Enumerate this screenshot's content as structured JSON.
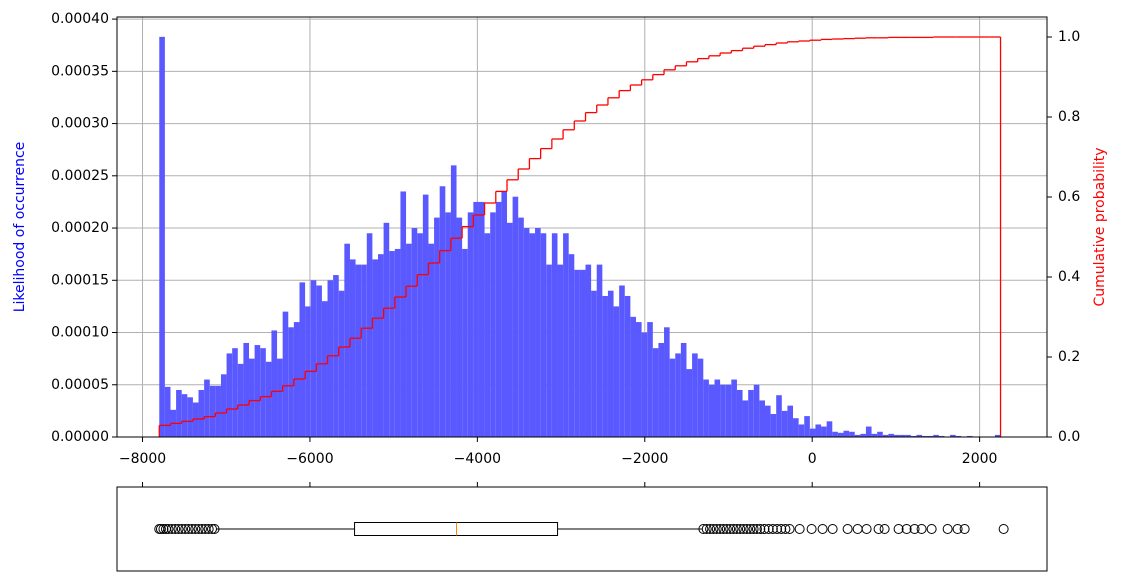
{
  "chart_data": [
    {
      "type": "histogram",
      "ylabel": "Likelihood of occurrence",
      "y2label": "Cumulative probability",
      "ylabel_color": "blue",
      "y2label_color": "red",
      "color": "#5959ff",
      "bins": [
        -7800,
        -7733,
        -7666,
        -7599,
        -7532,
        -7465,
        -7398,
        -7331,
        -7264,
        -7197,
        -7130,
        -7063,
        -6996,
        -6929,
        -6862,
        -6795,
        -6728,
        -6661,
        -6594,
        -6527,
        -6460,
        -6393,
        -6326,
        -6259,
        -6192,
        -6125,
        -6058,
        -5991,
        -5924,
        -5857,
        -5790,
        -5723,
        -5656,
        -5589,
        -5522,
        -5455,
        -5388,
        -5321,
        -5254,
        -5187,
        -5120,
        -5053,
        -4986,
        -4919,
        -4852,
        -4785,
        -4718,
        -4651,
        -4584,
        -4517,
        -4450,
        -4383,
        -4316,
        -4249,
        -4182,
        -4115,
        -4048,
        -3981,
        -3914,
        -3847,
        -3780,
        -3713,
        -3646,
        -3579,
        -3512,
        -3445,
        -3378,
        -3311,
        -3244,
        -3177,
        -3110,
        -3043,
        -2976,
        -2909,
        -2842,
        -2775,
        -2708,
        -2641,
        -2574,
        -2507,
        -2440,
        -2373,
        -2306,
        -2239,
        -2172,
        -2105,
        -2038,
        -1971,
        -1904,
        -1837,
        -1770,
        -1703,
        -1636,
        -1569,
        -1502,
        -1435,
        -1368,
        -1301,
        -1234,
        -1167,
        -1100,
        -1033,
        -966,
        -899,
        -832,
        -765,
        -698,
        -631,
        -564,
        -497,
        -430,
        -363,
        -296,
        -229,
        -162,
        -95,
        -28,
        39,
        106,
        173,
        240,
        307,
        374,
        441,
        508,
        575,
        642,
        709,
        776,
        843,
        910,
        977,
        1044,
        1111,
        1178,
        1245,
        1312,
        1379,
        1446,
        1513,
        1580,
        1647,
        1714,
        1781,
        1848,
        1915,
        1982,
        2049,
        2116,
        2183,
        2250
      ],
      "values": [
        0.000383,
        4.8e-05,
        2.6e-05,
        4.5e-05,
        4.1e-05,
        3.8e-05,
        3.3e-05,
        4.5e-05,
        5.5e-05,
        4.9e-05,
        4.9e-05,
        6e-05,
        8e-05,
        8.5e-05,
        7e-05,
        9e-05,
        7.5e-05,
        8.8e-05,
        8.5e-05,
        7.2e-05,
        0.000102,
        7.5e-05,
        0.00012,
        0.000105,
        0.00011,
        0.000148,
        0.000125,
        0.00015,
        0.000145,
        0.00013,
        0.00015,
        0.000155,
        0.00014,
        0.000185,
        0.00017,
        0.000165,
        0.000165,
        0.000195,
        0.00017,
        0.000175,
        0.000205,
        0.000178,
        0.00018,
        0.000235,
        0.000185,
        0.0002,
        0.000195,
        0.000232,
        0.000185,
        0.00021,
        0.00024,
        0.000215,
        0.00026,
        0.00021,
        0.00018,
        0.000215,
        0.000225,
        0.000225,
        0.000195,
        0.000215,
        0.000225,
        0.000235,
        0.000205,
        0.00023,
        0.00021,
        0.0002,
        0.000195,
        0.0002,
        0.000195,
        0.000165,
        0.000195,
        0.000165,
        0.000195,
        0.000175,
        0.00016,
        0.00016,
        0.000165,
        0.00014,
        0.000165,
        0.000135,
        0.00014,
        0.000125,
        0.000145,
        0.000135,
        0.000115,
        0.00011,
        0.0001,
        0.00011,
        8.5e-05,
        9e-05,
        0.000105,
        7.5e-05,
        8e-05,
        9e-05,
        6.5e-05,
        8e-05,
        7.5e-05,
        5.5e-05,
        5e-05,
        5.5e-05,
        5e-05,
        5e-05,
        5.5e-05,
        4.5e-05,
        3.5e-05,
        4.5e-05,
        5e-05,
        3.5e-05,
        3e-05,
        2.2e-05,
        4e-05,
        2.5e-05,
        3e-05,
        1.8e-05,
        1.2e-05,
        2e-05,
        8e-06,
        1.2e-05,
        1e-05,
        1.5e-05,
        5e-06,
        4e-06,
        6e-06,
        5e-06,
        2e-06,
        3e-06,
        1e-05,
        3e-06,
        5e-06,
        2e-06,
        3e-06,
        2e-06,
        2e-06,
        2e-06,
        1e-06,
        2e-06,
        1e-06,
        1e-06,
        2e-06,
        1e-06,
        0,
        2e-06,
        1e-06,
        0,
        1e-06,
        0,
        0,
        0,
        0,
        2e-06
      ],
      "cumulative": {
        "color": "red",
        "axis": "y2",
        "bins": [
          -7800,
          -7666,
          -7532,
          -7398,
          -7264,
          -7130,
          -6996,
          -6862,
          -6728,
          -6594,
          -6460,
          -6326,
          -6192,
          -6058,
          -5924,
          -5790,
          -5656,
          -5522,
          -5388,
          -5254,
          -5120,
          -4986,
          -4852,
          -4718,
          -4584,
          -4450,
          -4316,
          -4182,
          -4048,
          -3914,
          -3780,
          -3646,
          -3512,
          -3378,
          -3244,
          -3110,
          -2976,
          -2842,
          -2708,
          -2574,
          -2440,
          -2306,
          -2172,
          -2038,
          -1904,
          -1770,
          -1636,
          -1502,
          -1368,
          -1234,
          -1100,
          -966,
          -832,
          -698,
          -564,
          -430,
          -296,
          -162,
          -28,
          106,
          240,
          374,
          508,
          642,
          776,
          910,
          1044,
          1178,
          1312,
          1446,
          1580,
          1714,
          1848,
          1982,
          2116,
          2250
        ],
        "values": [
          0.029,
          0.034,
          0.039,
          0.045,
          0.051,
          0.06,
          0.07,
          0.08,
          0.091,
          0.101,
          0.114,
          0.128,
          0.145,
          0.164,
          0.183,
          0.203,
          0.225,
          0.247,
          0.272,
          0.297,
          0.322,
          0.35,
          0.377,
          0.406,
          0.435,
          0.466,
          0.497,
          0.526,
          0.555,
          0.585,
          0.614,
          0.643,
          0.67,
          0.696,
          0.721,
          0.745,
          0.768,
          0.79,
          0.811,
          0.83,
          0.848,
          0.866,
          0.88,
          0.893,
          0.906,
          0.918,
          0.928,
          0.938,
          0.946,
          0.953,
          0.96,
          0.966,
          0.972,
          0.977,
          0.981,
          0.985,
          0.988,
          0.99,
          0.992,
          0.994,
          0.995,
          0.996,
          0.997,
          0.998,
          0.998,
          0.999,
          0.999,
          0.999,
          0.999,
          1,
          1,
          1,
          1,
          1,
          1
        ]
      },
      "xlim": [
        -8305,
        2805
      ],
      "ylim": [
        0,
        0.000402
      ],
      "y2lim": [
        0,
        1.05
      ],
      "xticks": [
        {
          "value": -8000,
          "label": "−8000"
        },
        {
          "value": -6000,
          "label": "−6000"
        },
        {
          "value": -4000,
          "label": "−4000"
        },
        {
          "value": -2000,
          "label": "−2000"
        },
        0,
        2000
      ],
      "yticks": [
        {
          "value": 0,
          "label": "0.00000"
        },
        {
          "value": 5e-05,
          "label": "0.00005"
        },
        {
          "value": 0.0001,
          "label": "0.00010"
        },
        {
          "value": 0.00015,
          "label": "0.00015"
        },
        {
          "value": 0.0002,
          "label": "0.00020"
        },
        {
          "value": 0.00025,
          "label": "0.00025"
        },
        {
          "value": 0.0003,
          "label": "0.00030"
        },
        {
          "value": 0.00035,
          "label": "0.00035"
        },
        {
          "value": 0.0004,
          "label": "0.00040"
        }
      ],
      "y2ticks": [
        {
          "value": 0,
          "label": "0.0"
        },
        0.2,
        0.4,
        0.6,
        0.8,
        {
          "value": 1,
          "label": "1.0"
        }
      ],
      "grid": true
    },
    {
      "type": "boxplot",
      "whislo": -7116,
      "q1": -5467,
      "med": -4249,
      "q3": -3042,
      "whishi": -1309,
      "fliers": [
        -7800,
        -7780,
        -7750,
        -7720,
        -7690,
        -7650,
        -7610,
        -7570,
        -7530,
        -7490,
        -7450,
        -7410,
        -7370,
        -7330,
        -7290,
        -7250,
        -7210,
        -7170,
        -7140,
        -1300,
        -1260,
        -1220,
        -1180,
        -1140,
        -1100,
        -1060,
        -1020,
        -980,
        -940,
        -900,
        -860,
        -820,
        -780,
        -740,
        -700,
        -660,
        -620,
        -570,
        -520,
        -470,
        -420,
        -370,
        -320,
        -270,
        -150,
        -7,
        124,
        244,
        423,
        543,
        650,
        793,
        865,
        1032,
        1128,
        1223,
        1307,
        1427,
        1618,
        1737,
        1821,
        2287
      ],
      "color": "#000000",
      "median_color": "#ff7f0e",
      "xlim": [
        -8305,
        2805
      ],
      "xticks": [
        -8000,
        -6000,
        -4000,
        -2000,
        0,
        2000
      ]
    }
  ]
}
